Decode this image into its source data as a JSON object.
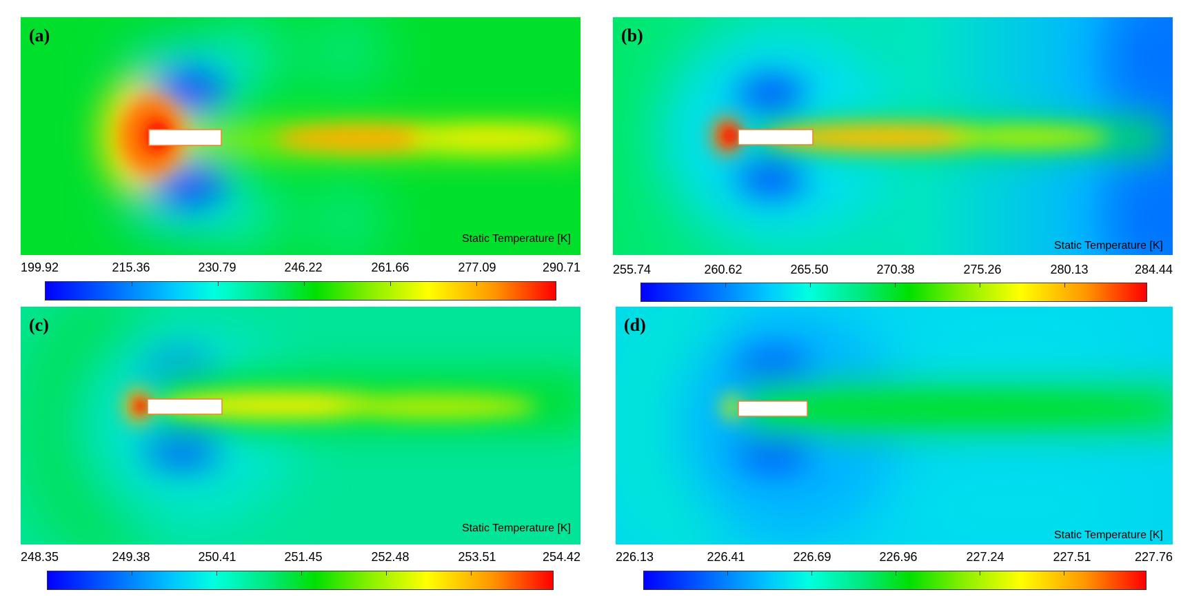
{
  "panels": [
    {
      "id": "a",
      "label": "(a)",
      "variable": "Static Temperature [K]",
      "colorbar_ticks": [
        "199.92",
        "215.36",
        "230.79",
        "246.22",
        "261.66",
        "277.09",
        "290.71"
      ]
    },
    {
      "id": "b",
      "label": "(b)",
      "variable": "Static Temperature [K]",
      "colorbar_ticks": [
        "255.74",
        "260.62",
        "265.50",
        "270.38",
        "275.26",
        "280.13",
        "284.44"
      ]
    },
    {
      "id": "c",
      "label": "(c)",
      "variable": "Static Temperature [K]",
      "colorbar_ticks": [
        "248.35",
        "249.38",
        "250.41",
        "251.45",
        "252.48",
        "253.51",
        "254.42"
      ]
    },
    {
      "id": "d",
      "label": "(d)",
      "variable": "Static Temperature [K]",
      "colorbar_ticks": [
        "226.13",
        "226.41",
        "226.69",
        "226.96",
        "227.24",
        "227.51",
        "227.76"
      ]
    }
  ],
  "colormap": [
    "#0000ff",
    "#00c8ff",
    "#00e000",
    "#ffff00",
    "#ff0000"
  ]
}
